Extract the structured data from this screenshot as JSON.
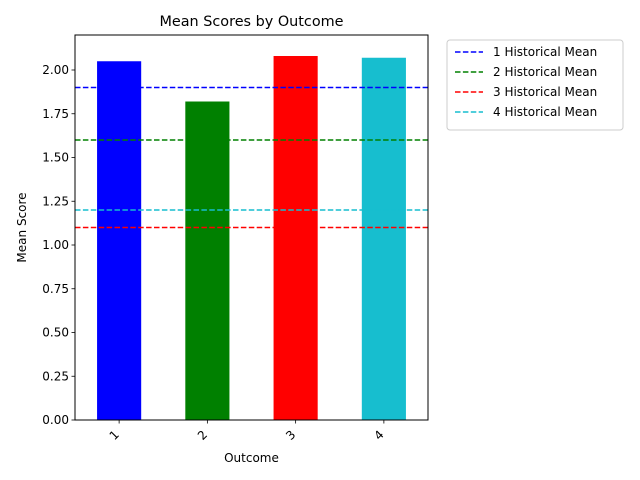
{
  "chart_data": {
    "type": "bar",
    "title": "Mean Scores by Outcome",
    "xlabel": "Outcome",
    "ylabel": "Mean Score",
    "categories": [
      "1",
      "2",
      "3",
      "4"
    ],
    "values": [
      2.05,
      1.82,
      2.08,
      2.07
    ],
    "colors": [
      "#0000ff",
      "#008000",
      "#ff0000",
      "#17becf"
    ],
    "ylim": [
      0,
      2.2
    ],
    "yticks": [
      0.0,
      0.25,
      0.5,
      0.75,
      1.0,
      1.25,
      1.5,
      1.75,
      2.0
    ],
    "ytick_labels": [
      "0.00",
      "0.25",
      "0.50",
      "0.75",
      "1.00",
      "1.25",
      "1.50",
      "1.75",
      "2.00"
    ],
    "reference_lines": [
      {
        "name": "1 Historical Mean",
        "value": 1.9,
        "color": "#0000ff",
        "style": "dashed"
      },
      {
        "name": "2 Historical Mean",
        "value": 1.6,
        "color": "#008000",
        "style": "dashed"
      },
      {
        "name": "3 Historical Mean",
        "value": 1.1,
        "color": "#ff0000",
        "style": "dashed"
      },
      {
        "name": "4 Historical Mean",
        "value": 1.2,
        "color": "#17becf",
        "style": "dashed"
      }
    ],
    "grid": false,
    "legend_placement": "outside-upper-right",
    "xtick_rotation": 45
  }
}
